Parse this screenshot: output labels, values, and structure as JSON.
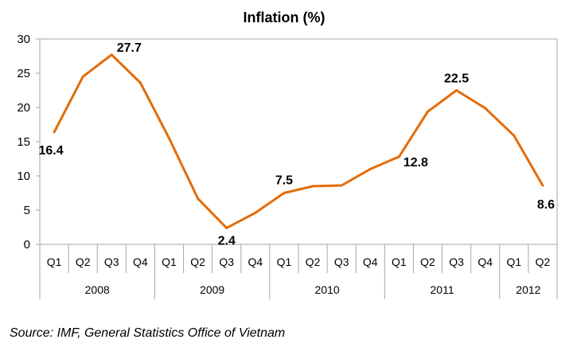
{
  "chart_data": {
    "type": "line",
    "title": "Inflation (%)",
    "categories": [
      "Q1",
      "Q2",
      "Q3",
      "Q4",
      "Q1",
      "Q2",
      "Q3",
      "Q4",
      "Q1",
      "Q2",
      "Q3",
      "Q4",
      "Q1",
      "Q2",
      "Q3",
      "Q4",
      "Q1",
      "Q2"
    ],
    "groups": [
      {
        "label": "2008",
        "count": 4
      },
      {
        "label": "2009",
        "count": 4
      },
      {
        "label": "2010",
        "count": 4
      },
      {
        "label": "2011",
        "count": 4
      },
      {
        "label": "2012",
        "count": 2
      }
    ],
    "series": [
      {
        "values": [
          16.4,
          24.5,
          27.7,
          23.6,
          15.5,
          6.7,
          2.4,
          4.6,
          7.5,
          8.5,
          8.6,
          11.0,
          12.8,
          19.4,
          22.5,
          19.9,
          15.9,
          8.6
        ]
      }
    ],
    "data_labels": [
      {
        "index": 0,
        "text": "16.4"
      },
      {
        "index": 2,
        "text": "27.7"
      },
      {
        "index": 6,
        "text": "2.4"
      },
      {
        "index": 8,
        "text": "7.5"
      },
      {
        "index": 12,
        "text": "12.8"
      },
      {
        "index": 14,
        "text": "22.5"
      },
      {
        "index": 17,
        "text": "8.6"
      }
    ],
    "ylim": [
      0,
      30
    ],
    "yticks": [
      0,
      5,
      10,
      15,
      20,
      25,
      30
    ],
    "grid": false,
    "line_color": "#E46C0A"
  },
  "source_text": "Source: IMF, General Statistics Office of Vietnam"
}
